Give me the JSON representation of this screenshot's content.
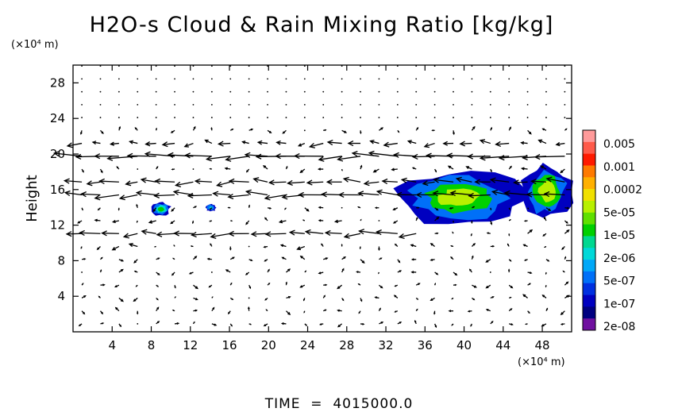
{
  "chart_data": {
    "type": "heatmap",
    "title": "H2O-s Cloud & Rain Mixing Ratio [kg/kg]",
    "ylabel": "Height",
    "y_unit": "(×10⁴ m)",
    "x_unit": "(×10⁴ m)",
    "footer": "TIME  =  4015000.0",
    "x_ticks": [
      "4",
      "8",
      "12",
      "16",
      "20",
      "24",
      "28",
      "32",
      "36",
      "40",
      "44",
      "48"
    ],
    "x_tick_values": [
      4,
      8,
      12,
      16,
      20,
      24,
      28,
      32,
      36,
      40,
      44,
      48
    ],
    "y_ticks": [
      "4",
      "8",
      "12",
      "16",
      "20",
      "24",
      "28"
    ],
    "y_tick_values": [
      4,
      8,
      12,
      16,
      20,
      24,
      28
    ],
    "xlim": [
      0,
      51
    ],
    "ylim": [
      0,
      30
    ],
    "colorbar": {
      "labels": [
        "0.005",
        "0.001",
        "0.0002",
        "5e-05",
        "1e-05",
        "2e-06",
        "5e-07",
        "1e-07",
        "2e-08"
      ],
      "colors": [
        "#ff9a9a",
        "#ff5a4a",
        "#ff1a00",
        "#ff7a00",
        "#ffb000",
        "#f0e000",
        "#b8f000",
        "#60e000",
        "#00d000",
        "#00d890",
        "#00d8d8",
        "#00a8f8",
        "#0070f8",
        "#0030e0",
        "#0000c0",
        "#000080",
        "#7010a0"
      ]
    },
    "cloud_regions": [
      {
        "x": [
          8.0,
          10.0
        ],
        "y": [
          13.0,
          14.6
        ],
        "level": "1e-05"
      },
      {
        "x": [
          13.6,
          14.6
        ],
        "y": [
          13.5,
          14.4
        ],
        "level": "2e-06"
      },
      {
        "x": [
          33.0,
          46.0
        ],
        "y": [
          12.0,
          18.0
        ],
        "level": "5e-05"
      },
      {
        "x": [
          46.0,
          51.0
        ],
        "y": [
          12.5,
          19.0
        ],
        "level": "5e-05"
      }
    ],
    "wind_jets": [
      {
        "y": 20.0,
        "x": [
          0,
          51
        ],
        "direction": "west",
        "strength": "strong"
      },
      {
        "y": 16.0,
        "x": [
          0,
          51
        ],
        "direction": "west",
        "strength": "strong"
      },
      {
        "y": 11.0,
        "x": [
          0,
          36
        ],
        "direction": "west",
        "strength": "moderate"
      }
    ]
  }
}
